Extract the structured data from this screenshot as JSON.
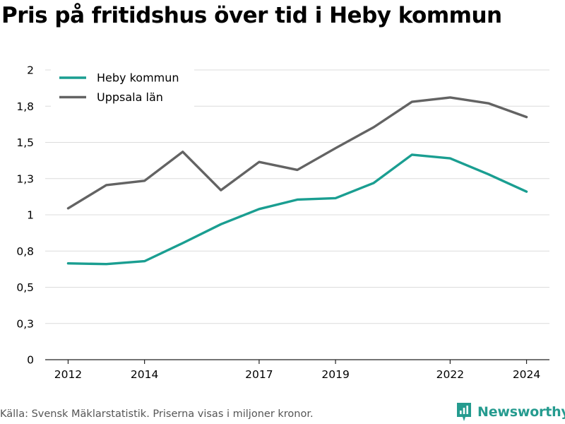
{
  "title": "Pris på fritidshus över tid i Heby kommun",
  "source": "Källa: Svensk Mäklarstatistik. Priserna visas i miljoner kronor.",
  "brand": {
    "name": "Newsworthy",
    "color": "#259b8f"
  },
  "chart_data": {
    "type": "line",
    "title": "Pris på fritidshus över tid i Heby kommun",
    "xlabel": "",
    "ylabel": "",
    "x": [
      2012,
      2013,
      2014,
      2015,
      2016,
      2017,
      2018,
      2019,
      2020,
      2021,
      2022,
      2023,
      2024
    ],
    "x_ticks": [
      2012,
      2014,
      2017,
      2019,
      2022,
      2024
    ],
    "y_ticks": [
      0,
      0.25,
      0.5,
      0.75,
      1.0,
      1.25,
      1.5,
      1.75,
      2.0
    ],
    "y_tick_labels": [
      "0",
      "0,3",
      "0,5",
      "0,8",
      "1",
      "1,3",
      "1,5",
      "1,8",
      "2"
    ],
    "ylim": [
      0,
      2.0
    ],
    "xlim": [
      2011.4,
      2024.6
    ],
    "grid": true,
    "legend_position": "top-left",
    "series": [
      {
        "name": "Heby kommun",
        "color": "#1a9e91",
        "values": [
          0.665,
          0.66,
          0.68,
          0.805,
          0.935,
          1.04,
          1.105,
          1.115,
          1.22,
          1.415,
          1.39,
          1.28,
          1.16
        ]
      },
      {
        "name": "Uppsala län",
        "color": "#636363",
        "values": [
          1.045,
          1.205,
          1.235,
          1.435,
          1.17,
          1.365,
          1.31,
          1.46,
          1.605,
          1.78,
          1.81,
          1.77,
          1.675
        ]
      }
    ]
  }
}
